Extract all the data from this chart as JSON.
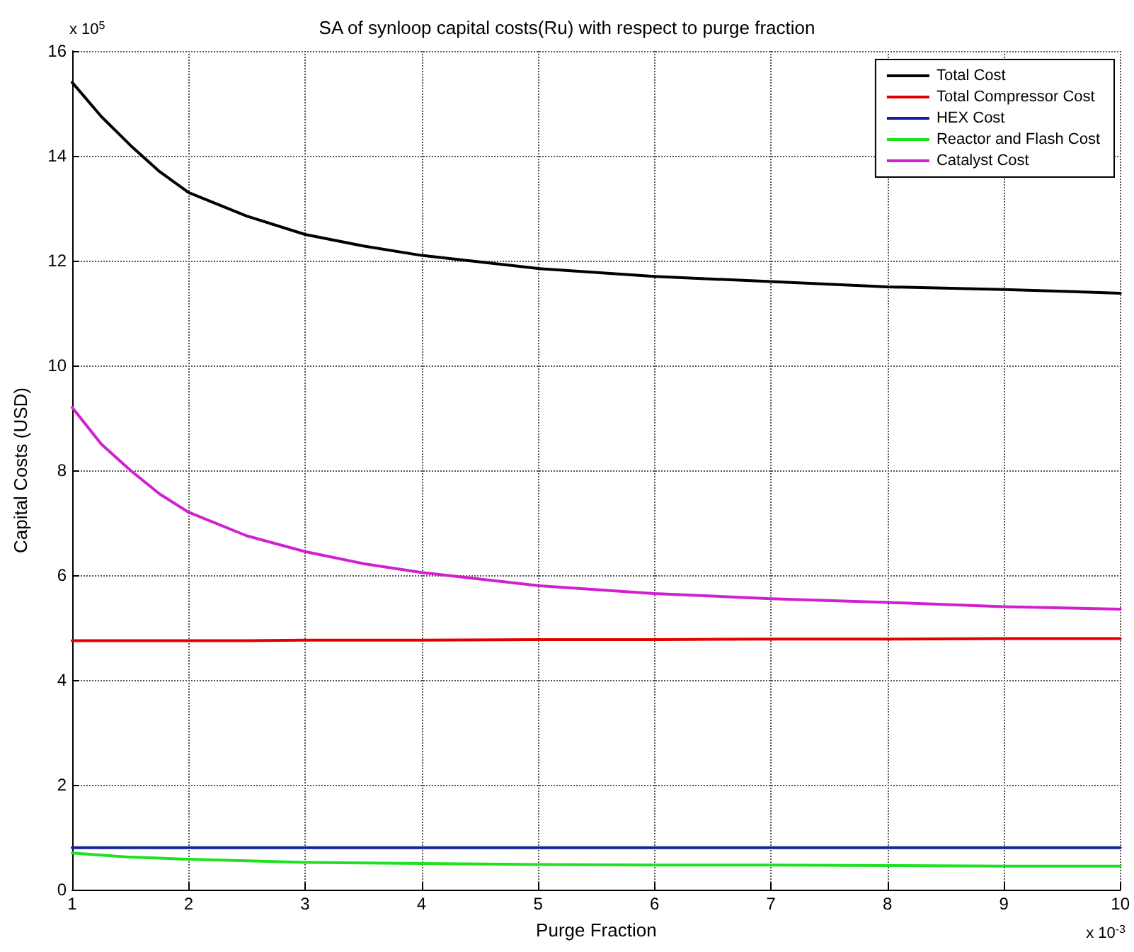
{
  "chart_data": {
    "type": "line",
    "title": "SA of synloop capital costs(Ru) with respect to purge fraction",
    "xlabel": "Purge Fraction",
    "ylabel": "Capital Costs (USD)",
    "annotations": [
      "x 10$^{5}$",
      "x 10$^{-3}$"
    ],
    "x": [
      1,
      1.25,
      1.5,
      1.75,
      2,
      2.5,
      3,
      3.5,
      4,
      5,
      6,
      7,
      8,
      9,
      10
    ],
    "series": [
      {
        "name": "Total Cost",
        "color": "#000000",
        "values": [
          15.4,
          14.75,
          14.2,
          13.7,
          13.3,
          12.85,
          12.5,
          12.28,
          12.1,
          11.85,
          11.7,
          11.6,
          11.5,
          11.45,
          11.38
        ]
      },
      {
        "name": "Total Compressor Cost",
        "color": "#e00000",
        "values": [
          4.75,
          4.75,
          4.75,
          4.75,
          4.75,
          4.75,
          4.76,
          4.76,
          4.76,
          4.77,
          4.77,
          4.78,
          4.78,
          4.79,
          4.79
        ]
      },
      {
        "name": "HEX Cost",
        "color": "#1020a0",
        "values": [
          0.8,
          0.8,
          0.8,
          0.8,
          0.8,
          0.8,
          0.8,
          0.8,
          0.8,
          0.8,
          0.8,
          0.8,
          0.8,
          0.8,
          0.8
        ]
      },
      {
        "name": "Reactor and Flash Cost",
        "color": "#20e020",
        "values": [
          0.7,
          0.66,
          0.62,
          0.6,
          0.58,
          0.55,
          0.52,
          0.51,
          0.5,
          0.48,
          0.47,
          0.47,
          0.46,
          0.45,
          0.45
        ]
      },
      {
        "name": "Catalyst Cost",
        "color": "#d020d0",
        "values": [
          9.2,
          8.5,
          8.0,
          7.55,
          7.2,
          6.75,
          6.45,
          6.22,
          6.05,
          5.8,
          5.65,
          5.55,
          5.48,
          5.4,
          5.35
        ]
      }
    ],
    "xlim": [
      1,
      10
    ],
    "xticks": [
      1,
      2,
      3,
      4,
      5,
      6,
      7,
      8,
      9,
      10
    ],
    "ylim": [
      0,
      16
    ],
    "yticks": [
      0,
      2,
      4,
      6,
      8,
      10,
      12,
      14,
      16
    ],
    "grid": true,
    "legend": "top right",
    "marker": "none",
    "line_style": "solid"
  }
}
